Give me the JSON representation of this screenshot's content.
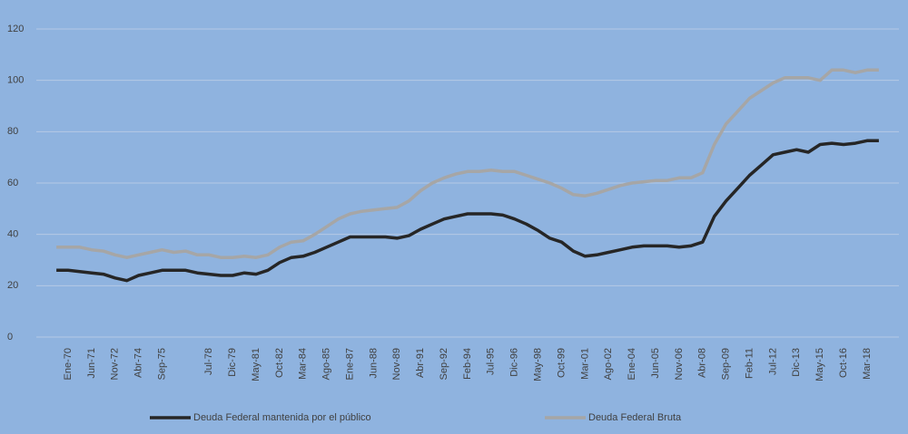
{
  "chart_data": {
    "type": "line",
    "categories": [
      null,
      "Ene-70",
      null,
      "Jun-71",
      null,
      "Nov-72",
      null,
      "Abr-74",
      null,
      "Sep-75",
      null,
      null,
      null,
      "Jul-78",
      null,
      "Dic-79",
      null,
      "May-81",
      null,
      "Oct-82",
      null,
      "Mar-84",
      null,
      "Ago-85",
      null,
      "Ene-87",
      null,
      "Jun-88",
      null,
      "Nov-89",
      null,
      "Abr-91",
      null,
      "Sep-92",
      null,
      "Feb-94",
      null,
      "Jul-95",
      null,
      "Dic-96",
      null,
      "May-98",
      null,
      "Oct-99",
      null,
      "Mar-01",
      null,
      "Ago-02",
      null,
      "Ene-04",
      null,
      "Jun-05",
      null,
      "Nov-06",
      null,
      "Abr-08",
      null,
      "Sep-09",
      null,
      "Feb-11",
      null,
      "Jul-12",
      null,
      "Dic-13",
      null,
      "May-15",
      null,
      "Oct-16",
      null,
      "Mar-18",
      null
    ],
    "series": [
      {
        "name": "Deuda Federal mantenida por el público",
        "color": "#262626",
        "values": [
          26,
          26,
          25.5,
          25,
          24.5,
          23,
          22,
          24,
          25,
          26,
          26,
          26,
          25,
          24.5,
          24,
          24,
          25,
          24.5,
          26,
          29,
          31,
          31.5,
          33,
          35,
          37,
          39,
          39,
          39,
          39,
          38.5,
          39.5,
          42,
          44,
          46,
          47,
          48,
          48,
          48,
          47.5,
          46,
          44,
          41.5,
          38.5,
          37,
          33.5,
          31.5,
          32,
          33,
          34,
          35,
          35.5,
          35.5,
          35.5,
          35,
          35.5,
          37,
          47,
          53,
          58,
          63,
          67,
          71,
          72,
          73,
          72,
          75,
          75.5,
          75,
          75.5,
          76.5,
          76.5
        ]
      },
      {
        "name": "Deuda Federal Bruta",
        "color": "#a6a6a6",
        "values": [
          35,
          35,
          35,
          34,
          33.5,
          32,
          31,
          32,
          33,
          34,
          33,
          33.5,
          32,
          32,
          31,
          31,
          31.5,
          31,
          32,
          35,
          37,
          37.5,
          40,
          43,
          46,
          48,
          49,
          49.5,
          50,
          50.5,
          53,
          57,
          60,
          62,
          63.5,
          64.5,
          64.5,
          65,
          64.5,
          64.5,
          63,
          61.5,
          60,
          58,
          55.5,
          55,
          56,
          57.5,
          59,
          60,
          60.5,
          61,
          61,
          62,
          62,
          64,
          75,
          83,
          88,
          93,
          96,
          99,
          101,
          101,
          101,
          100,
          104,
          104,
          103,
          104,
          104
        ]
      }
    ],
    "ylim": [
      0,
      120
    ],
    "yticks": [
      0,
      20,
      40,
      60,
      80,
      100,
      120
    ],
    "grid": true
  }
}
